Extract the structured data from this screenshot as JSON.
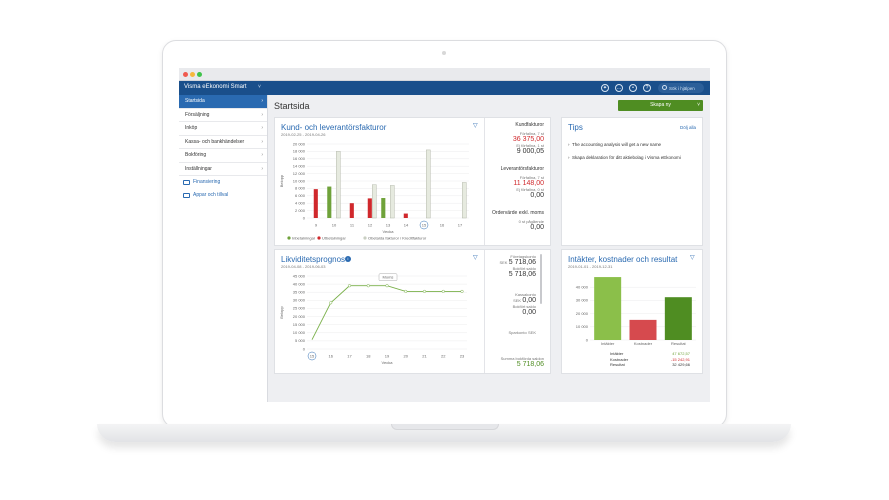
{
  "browser": {
    "traffic_lights": [
      "#f05a4f",
      "#f6b83c",
      "#3fc34a"
    ]
  },
  "app": {
    "title": "Visma eEkonomi Smart",
    "caret": "˅",
    "search_placeholder": "Sök i hjälpen",
    "icons": [
      "gift-icon",
      "chat-icon",
      "notifications-icon",
      "help-icon"
    ]
  },
  "sidebar": {
    "items": [
      {
        "label": "Startsida",
        "active": true
      },
      {
        "label": "Försäljning"
      },
      {
        "label": "Inköp"
      },
      {
        "label": "Kassa- och bankhändelser"
      },
      {
        "label": "Bokföring"
      },
      {
        "label": "Inställningar"
      }
    ],
    "links": [
      {
        "label": "Finansiering",
        "icon": "bank-icon"
      },
      {
        "label": "Appar och tillval",
        "icon": "basket-icon"
      }
    ],
    "chevron": "›"
  },
  "page": {
    "title": "Startsida",
    "create_button": "Skapa ny",
    "create_caret": "˅"
  },
  "cards": {
    "invoices": {
      "title": "Kund- och leverantörsfakturor",
      "period": "2019-02-25 - 2019-04-26",
      "ylabel": "Belopp",
      "xlabel": "Vecka",
      "legend": [
        "Inbetalningar",
        "Utbetalningar",
        "Obetalda fakturor / Kreditfakturor"
      ],
      "legend_colors": [
        "#6fa23a",
        "#d0282c",
        "#c9cfc2"
      ],
      "customer": {
        "heading": "Kundfakturor",
        "overdue_label": "Förfallna, 7 st",
        "overdue_value": "36 375,00",
        "not_due_label": "Ej förfallna, 1 st",
        "not_due_value": "9 000,05"
      },
      "supplier": {
        "heading": "Leverantörsfakturor",
        "overdue_label": "Förfallna, 7 st",
        "overdue_value": "11 148,00",
        "not_due_label": "Ej förfallna, 0 st",
        "not_due_value": "0,00"
      },
      "orders": {
        "heading": "Ordervärde exkl. moms",
        "ongoing_label": "0 st pågående",
        "ongoing_value": "0,00"
      }
    },
    "tips": {
      "title": "Tips",
      "hide_label": "Dölj alla",
      "items": [
        "The accounting analysis will get a new name",
        "Skapa deklaration för ditt aktiebolag i Visma eEkonomi"
      ],
      "bullet": "›"
    },
    "liquidity": {
      "title": "Likviditetsprognos",
      "period": "2019-04-08 - 2019-06-03",
      "ylabel": "Belopp",
      "xlabel": "Vecka",
      "tooltip": "Moms",
      "accounts": [
        {
          "heading": "Företagskonto",
          "currency": "SEK",
          "value": "5 718,06",
          "booked_label": "Bokfört saldo",
          "booked_value": "5 718,06"
        },
        {
          "heading": "Kassakonto",
          "currency": "SEK",
          "value": "0,00",
          "booked_label": "Bokfört saldo",
          "booked_value": "0,00"
        },
        {
          "heading": "Sparkonto",
          "currency": "SEK",
          "value": "",
          "booked_label": "",
          "booked_value": ""
        }
      ],
      "total_label": "Summa bokförda saldon",
      "total_value": "5 718,06"
    },
    "income": {
      "title": "Intäkter, kostnader och resultat",
      "period": "2019-01-01 - 2019-12-31",
      "summary": [
        {
          "label": "Intäkter",
          "value": "47 672,57",
          "color": "#6fa23a"
        },
        {
          "label": "Kostnader",
          "value": "-15 242,91",
          "color": "#d0282c"
        },
        {
          "label": "Resultat",
          "value": "32 429,66",
          "color": "#333333"
        }
      ]
    }
  },
  "chart_data": [
    {
      "type": "bar",
      "title": "Kund- och leverantörsfakturor",
      "categories": [
        "9",
        "10",
        "11",
        "12",
        "13",
        "14",
        "15",
        "16",
        "17"
      ],
      "xlabel": "Vecka",
      "ylabel": "Belopp",
      "ylim": [
        0,
        20000
      ],
      "yticks": [
        "0",
        "2 000",
        "4 000",
        "6 000",
        "8 000",
        "10 000",
        "12 000",
        "14 000",
        "16 000",
        "18 000",
        "20 000"
      ],
      "highlight_category": "15",
      "series": [
        {
          "name": "Inbetalningar",
          "color": "#6fa23a",
          "values": [
            0,
            8500,
            0,
            0,
            5400,
            0,
            0,
            0,
            0
          ]
        },
        {
          "name": "Utbetalningar",
          "color": "#d0282c",
          "values": [
            7800,
            0,
            4000,
            5300,
            0,
            1200,
            0,
            0,
            0
          ]
        },
        {
          "name": "Obetalda fakturor / Kreditfakturor",
          "color": "#c9cfc2",
          "values": [
            0,
            18000,
            0,
            9000,
            8800,
            0,
            18400,
            0,
            9600
          ]
        }
      ]
    },
    {
      "type": "line",
      "title": "Likviditetsprognos",
      "x": [
        "15",
        "16",
        "17",
        "18",
        "19",
        "20",
        "21",
        "22",
        "23"
      ],
      "xlabel": "Vecka",
      "ylabel": "Belopp",
      "ylim": [
        0,
        45000
      ],
      "yticks": [
        "0",
        "5 000",
        "10 000",
        "15 000",
        "20 000",
        "25 000",
        "30 000",
        "35 000",
        "40 000",
        "45 000"
      ],
      "series": [
        {
          "name": "",
          "color": "#7ab04a",
          "values": [
            5718,
            28500,
            39000,
            39000,
            39000,
            35500,
            35500,
            35500,
            35500
          ]
        }
      ],
      "annotation": {
        "label": "Moms",
        "x": "19"
      },
      "highlight_category": "15"
    },
    {
      "type": "bar",
      "title": "Intäkter, kostnader och resultat",
      "categories": [
        "Intäkter",
        "Kostnader",
        "Resultat"
      ],
      "values": [
        47672.57,
        15242.91,
        32429.66
      ],
      "colors": [
        "#8bbf4a",
        "#d64a4e",
        "#4f8d22"
      ],
      "ylim": [
        0,
        50000
      ],
      "yticks": [
        "0",
        "10 000",
        "20 000",
        "30 000",
        "40 000"
      ]
    }
  ]
}
